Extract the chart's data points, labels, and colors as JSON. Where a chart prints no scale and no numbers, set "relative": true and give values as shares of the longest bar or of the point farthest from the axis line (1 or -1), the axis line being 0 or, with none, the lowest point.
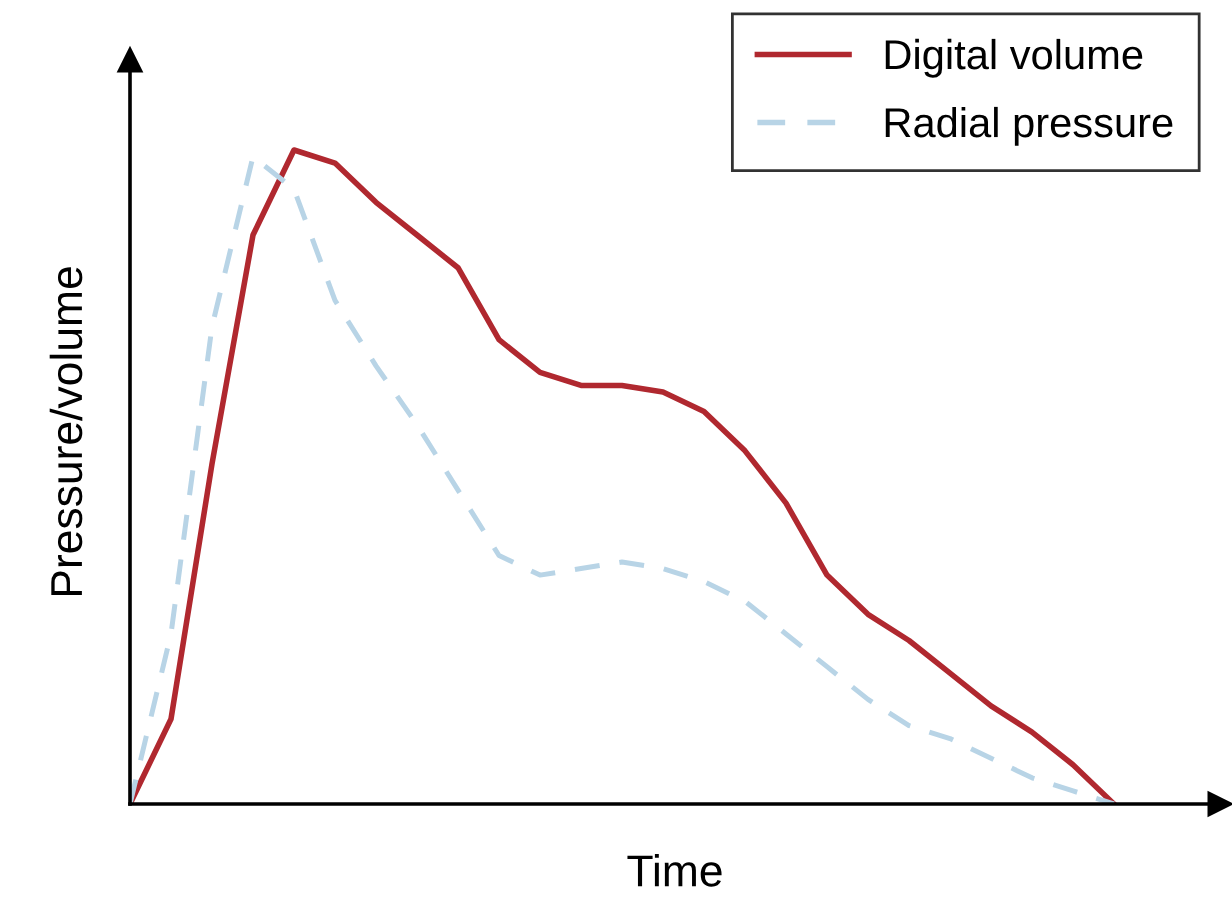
{
  "chart_data": {
    "type": "line",
    "relative": true,
    "xlabel": "Time",
    "ylabel": "Pressure/volume",
    "legend": "top right",
    "marker": "none",
    "categories": [
      null,
      null,
      null,
      null,
      null,
      null,
      null,
      null,
      null,
      null,
      null,
      null,
      null,
      null,
      null,
      null,
      null,
      null,
      null,
      null,
      null,
      null,
      null,
      null,
      null
    ],
    "series": [
      {
        "name": "Digital volume",
        "color": "#b0282f",
        "line_style": "solid",
        "values": [
          0,
          0.13,
          0.52,
          0.87,
          1.0,
          0.98,
          0.92,
          0.87,
          0.82,
          0.71,
          0.66,
          0.64,
          0.64,
          0.63,
          0.6,
          0.54,
          0.46,
          0.35,
          0.29,
          0.25,
          0.2,
          0.15,
          0.11,
          0.06,
          0
        ]
      },
      {
        "name": "Radial pressure",
        "color": "#b8d4e6",
        "line_style": "dashed",
        "values": [
          0,
          0.26,
          0.73,
          0.99,
          0.94,
          0.77,
          0.67,
          0.58,
          0.48,
          0.38,
          0.35,
          0.36,
          0.37,
          0.36,
          0.34,
          0.31,
          0.26,
          0.21,
          0.16,
          0.12,
          0.1,
          0.07,
          0.04,
          0.02,
          0
        ]
      }
    ]
  }
}
